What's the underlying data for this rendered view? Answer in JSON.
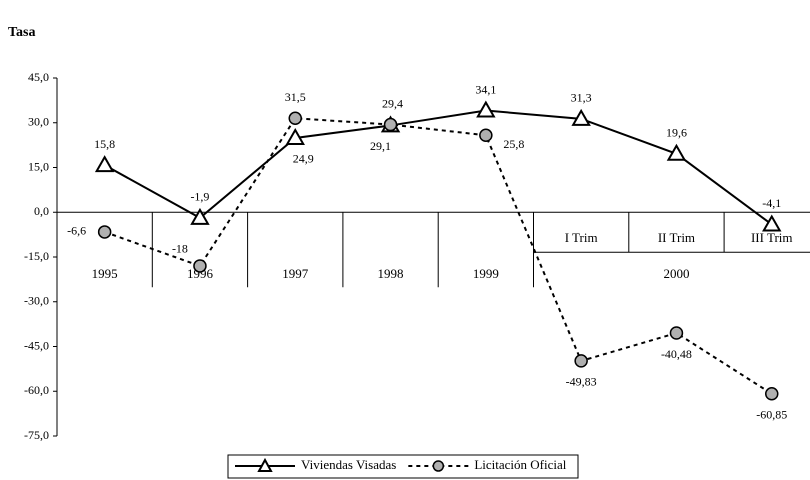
{
  "chart_data": {
    "type": "line",
    "title": "Tasa",
    "categories": [
      "1995",
      "1996",
      "1997",
      "1998",
      "1999",
      "I Trim",
      "II Trim",
      "III Trim"
    ],
    "group_label": "2000",
    "series": [
      {
        "name": "Viviendas Visadas",
        "color": "#000000",
        "marker": "triangle",
        "dash": false,
        "values": [
          15.8,
          -1.9,
          24.9,
          29.1,
          34.1,
          31.3,
          19.6,
          -4.1
        ],
        "value_labels": [
          "15,8",
          "-1,9",
          "24,9",
          "29,1",
          "34,1",
          "31,3",
          "19,6",
          "-4,1"
        ]
      },
      {
        "name": "Licitación Oficial",
        "color": "#000000",
        "marker": "circle",
        "dash": true,
        "values": [
          -6.6,
          -18,
          31.5,
          29.4,
          25.8,
          -49.83,
          -40.48,
          -60.85
        ],
        "value_labels": [
          "-6,6",
          "-18",
          "31,5",
          "29,4",
          "25,8",
          "-49,83",
          "-40,48",
          "-60,85"
        ]
      }
    ],
    "ylim": [
      -75,
      45
    ],
    "yticks": [
      {
        "value": 45,
        "label": "45,0"
      },
      {
        "value": 30,
        "label": "30,0"
      },
      {
        "value": 15,
        "label": "15,0"
      },
      {
        "value": 0,
        "label": "0,0"
      },
      {
        "value": -15,
        "label": "-15,0"
      },
      {
        "value": -30,
        "label": "-30,0"
      },
      {
        "value": -45,
        "label": "-45,0"
      },
      {
        "value": -60,
        "label": "-60,0"
      },
      {
        "value": -75,
        "label": "-75,0"
      }
    ],
    "grid": false,
    "legend": "bottom"
  }
}
